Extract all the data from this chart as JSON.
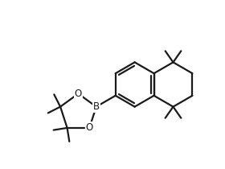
{
  "bg_color": "#ffffff",
  "line_color": "#1a1a1a",
  "line_width": 1.6,
  "label_fontsize": 8.0,
  "xlim": [
    0,
    10
  ],
  "ylim": [
    0,
    7.5
  ],
  "figsize": [
    2.8,
    2.1
  ],
  "dpi": 100
}
